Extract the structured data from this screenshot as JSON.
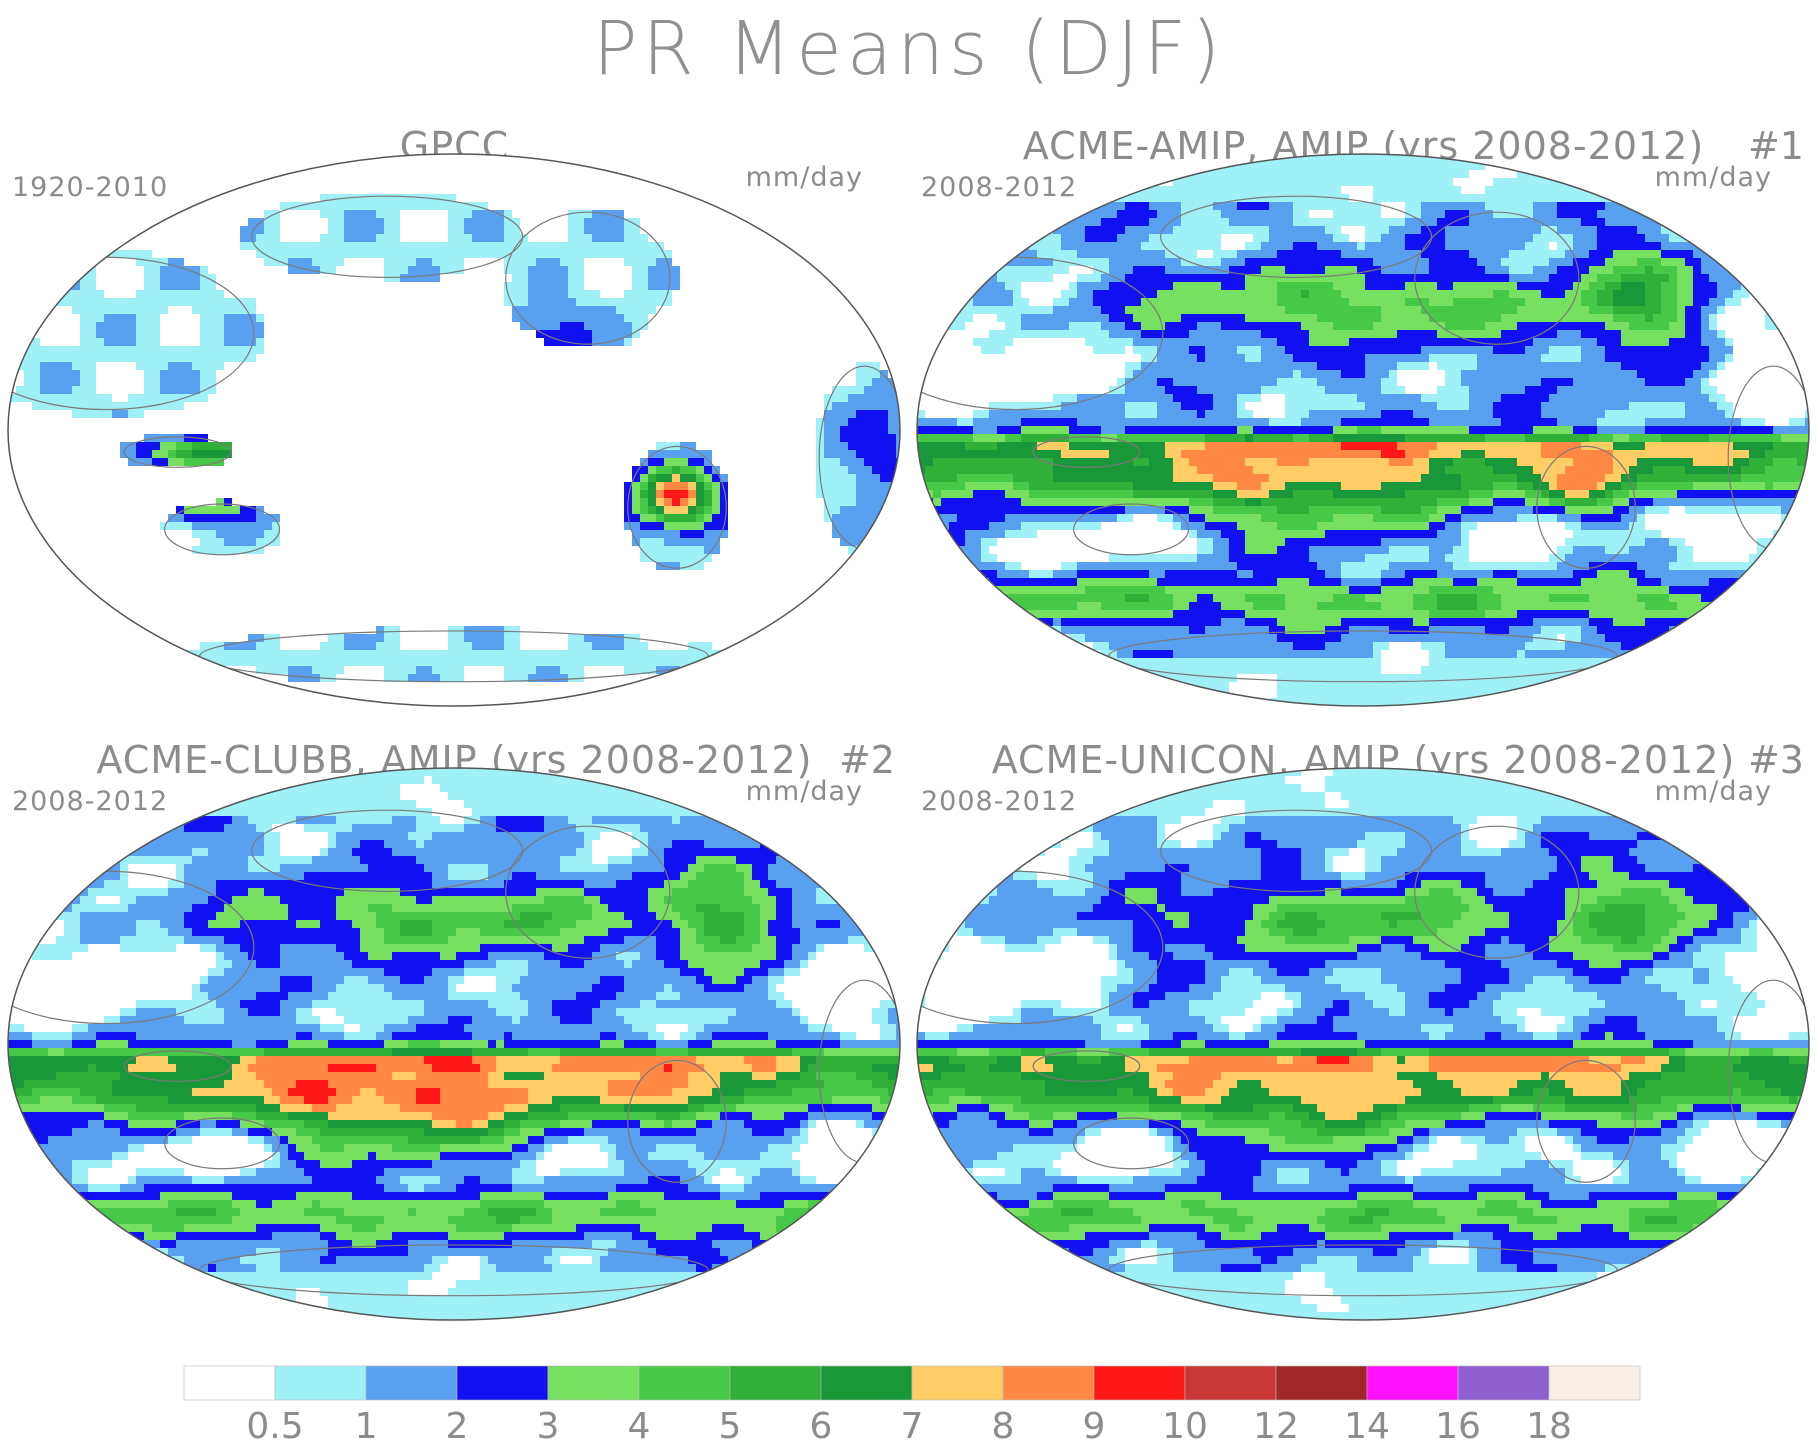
{
  "title": "PR Means (DJF)",
  "panels": [
    {
      "title": "GPCC",
      "number": "",
      "years": "1920-2010",
      "units": "mm/day",
      "kind": "obs"
    },
    {
      "title": "ACME-AMIP, AMIP (yrs 2008-2012)",
      "number": "#1",
      "years": "2008-2012",
      "units": "mm/day",
      "kind": "model",
      "seed": 1
    },
    {
      "title": "ACME-CLUBB, AMIP (yrs 2008-2012)",
      "number": "#2",
      "years": "2008-2012",
      "units": "mm/day",
      "kind": "model",
      "seed": 2
    },
    {
      "title": "ACME-UNICON, AMIP (yrs 2008-2012)",
      "number": "#3",
      "years": "2008-2012",
      "units": "mm/day",
      "kind": "model",
      "seed": 3
    }
  ],
  "colorbar": {
    "labels": [
      "0.5",
      "1",
      "2",
      "3",
      "4",
      "5",
      "6",
      "7",
      "8",
      "9",
      "10",
      "12",
      "14",
      "16",
      "18"
    ],
    "colors": [
      "#ffffff",
      "#a0f0f8",
      "#5aa0f0",
      "#1010f0",
      "#78e060",
      "#48c848",
      "#30b038",
      "#189838",
      "#ffcc66",
      "#ff8844",
      "#ff1818",
      "#c83838",
      "#a02828",
      "#ff10ff",
      "#9060d0",
      "#f8eee6"
    ]
  }
}
